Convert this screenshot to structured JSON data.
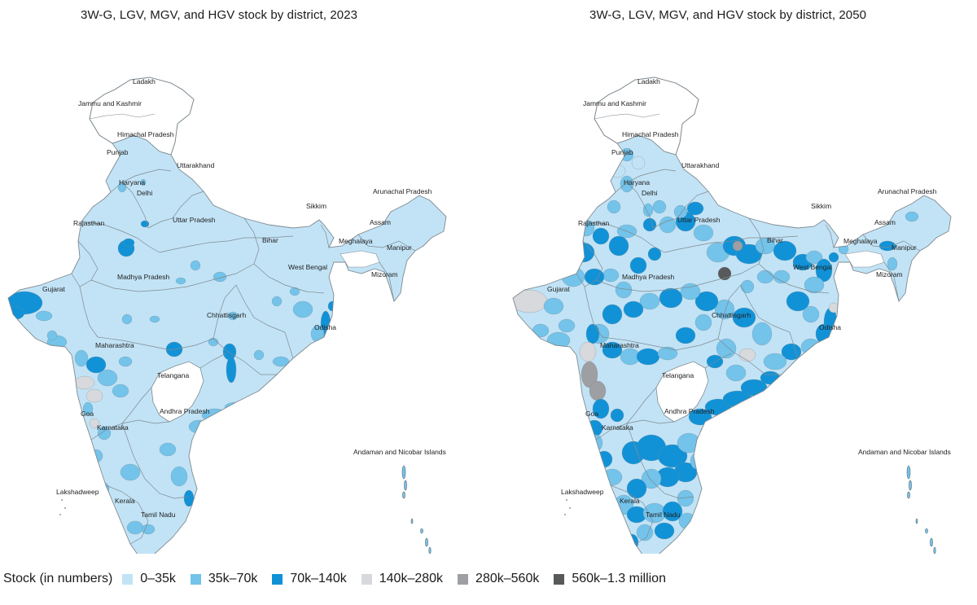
{
  "maps": [
    {
      "title": "3W-G, LGV, MGV, and HGV stock by district, 2023",
      "labels": [
        "Ladakh",
        "Jammu and Kashmir",
        "Himachal Pradesh",
        "Punjab",
        "Uttarakhand",
        "Haryana",
        "Delhi",
        "Rajasthan",
        "Uttar Pradesh",
        "Sikkim",
        "Arunachal Pradesh",
        "Assam",
        "Meghalaya",
        "Bihar",
        "Manipur",
        "West Bengal",
        "Mizoram",
        "Gujarat",
        "Madhya Pradesh",
        "Chhattisgarh",
        "Odisha",
        "Maharashtra",
        "Telangana",
        "Andhra Pradesh",
        "Goa",
        "Karnataka",
        "Andaman and Nicobar Islands",
        "Lakshadweep",
        "Tamil Nadu",
        "Kerala"
      ]
    },
    {
      "title": "3W-G, LGV, MGV, and HGV stock by district, 2050",
      "labels": [
        "Ladakh",
        "Jammu and Kashmir",
        "Himachal Pradesh",
        "Punjab",
        "Uttarakhand",
        "Haryana",
        "Delhi",
        "Rajasthan",
        "Uttar Pradesh",
        "Sikkim",
        "Arunachal Pradesh",
        "Assam",
        "Meghalaya",
        "Bihar",
        "Manipur",
        "West Bengal",
        "Mizoram",
        "Gujarat",
        "Madhya Pradesh",
        "Chhattisgarh",
        "Odisha",
        "Maharashtra",
        "Telangana",
        "Andhra Pradesh",
        "Goa",
        "Karnataka",
        "Andaman and Nicobar Islands",
        "Lakshadweep",
        "Tamil Nadu",
        "Kerala"
      ]
    }
  ],
  "legend": {
    "title": "Stock (in numbers)",
    "items": [
      {
        "label": "0–35k",
        "color": "#c2e3f6"
      },
      {
        "label": "35k–70k",
        "color": "#73c3ea"
      },
      {
        "label": "70k–140k",
        "color": "#1192d7"
      },
      {
        "label": "140k–280k",
        "color": "#d7d9dc"
      },
      {
        "label": "280k–560k",
        "color": "#9d9fa2"
      },
      {
        "label": "560k–1.3 million",
        "color": "#58595b"
      }
    ]
  },
  "colors": {
    "no_data": "#ffffff",
    "boundary": "#7f8a90"
  }
}
